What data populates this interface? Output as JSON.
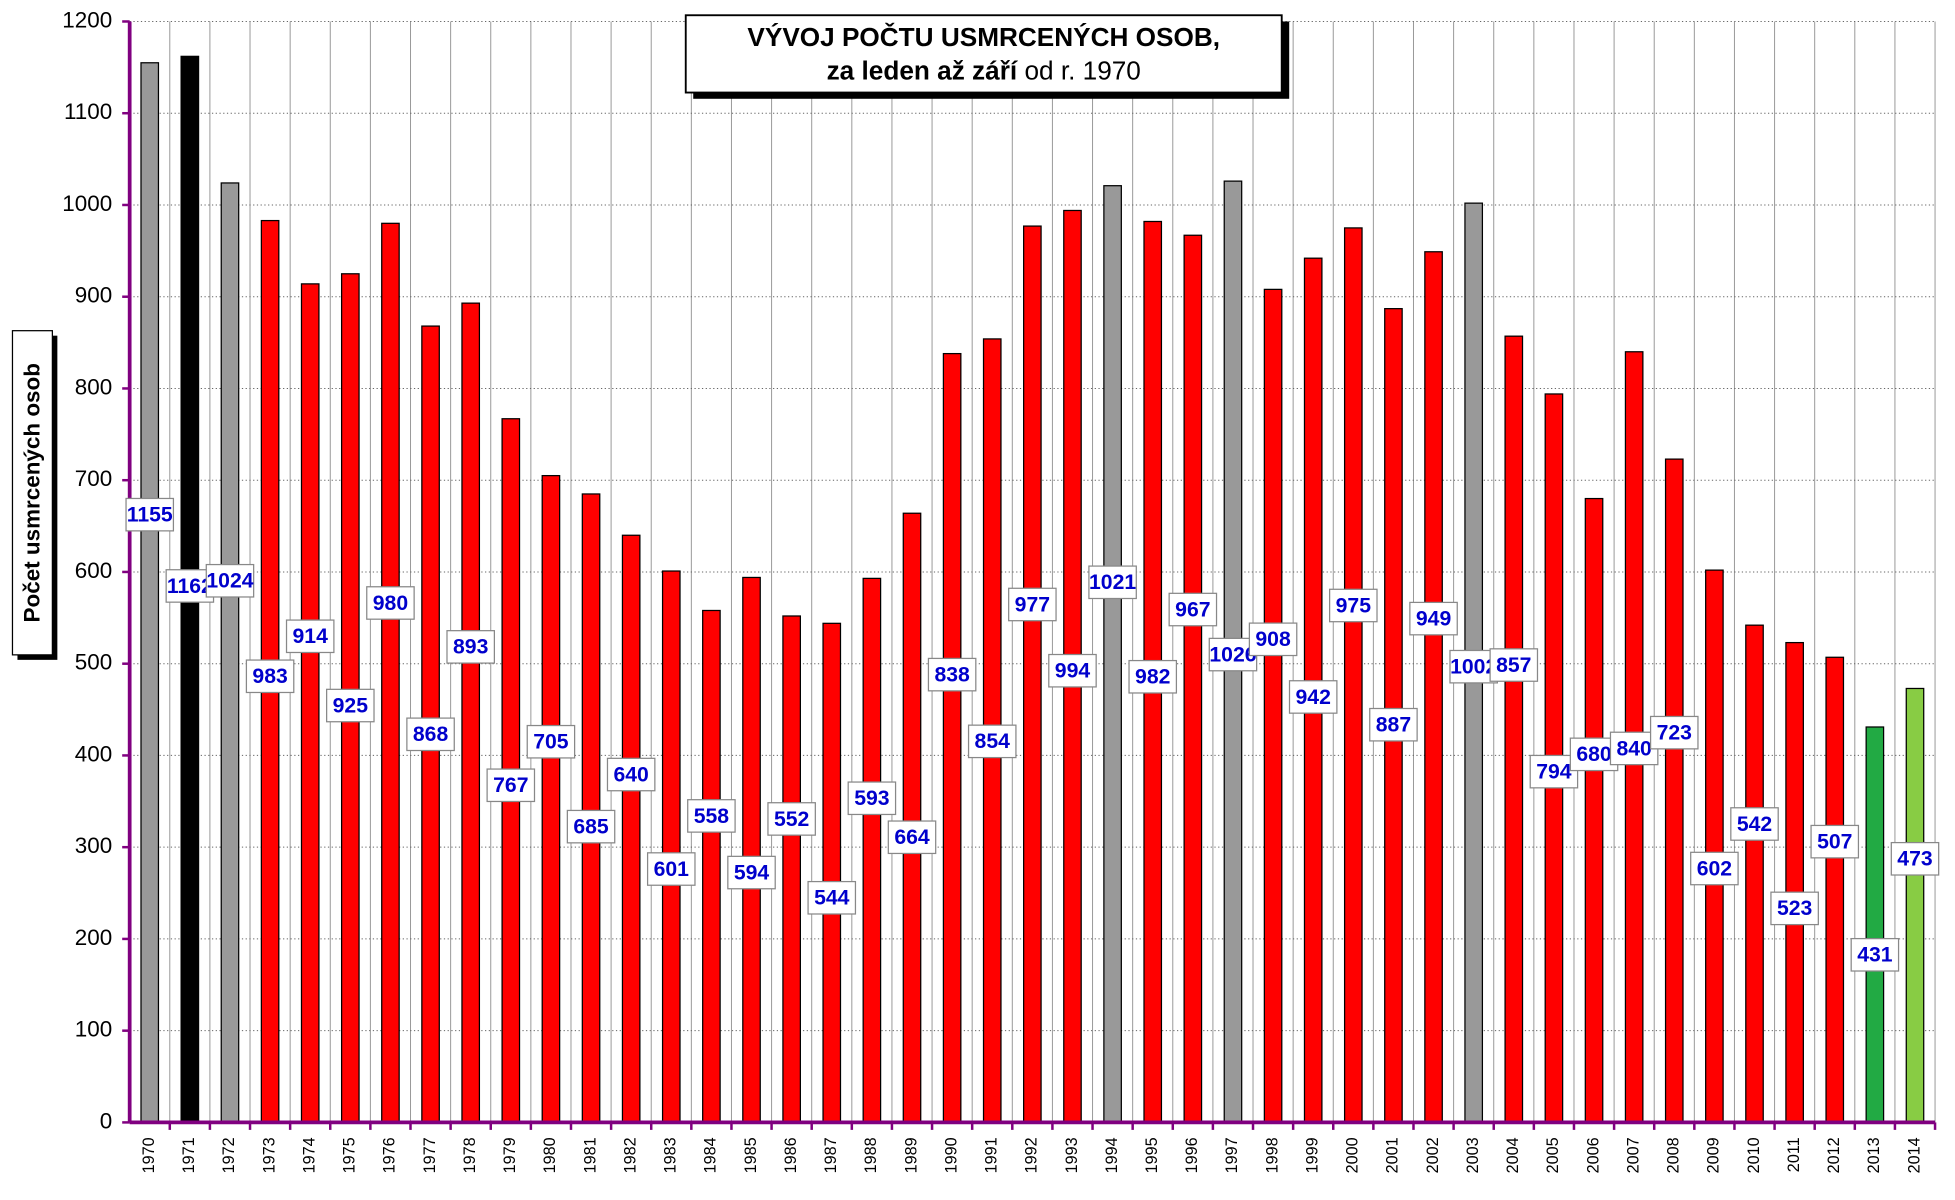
{
  "chart_data": {
    "type": "bar",
    "title": "VÝVOJ POČTU USMRCENÝCH OSOB,",
    "subtitle_bold": "za leden až září",
    "subtitle_normal": "od r. 1970",
    "y_label": "Počet usmrcených osob",
    "categories": [
      "1970",
      "1971",
      "1972",
      "1973",
      "1974",
      "1975",
      "1976",
      "1977",
      "1978",
      "1979",
      "1980",
      "1981",
      "1982",
      "1983",
      "1984",
      "1985",
      "1986",
      "1987",
      "1988",
      "1989",
      "1990",
      "1991",
      "1992",
      "1993",
      "1994",
      "1995",
      "1996",
      "1997",
      "1998",
      "1999",
      "2000",
      "2001",
      "2002",
      "2003",
      "2004",
      "2005",
      "2006",
      "2007",
      "2008",
      "2009",
      "2010",
      "2011",
      "2012",
      "2013",
      "2014"
    ],
    "values": [
      1155,
      1162,
      1024,
      983,
      914,
      925,
      980,
      868,
      893,
      767,
      705,
      685,
      640,
      601,
      558,
      594,
      552,
      544,
      593,
      664,
      838,
      854,
      977,
      994,
      1021,
      982,
      967,
      1026,
      908,
      942,
      975,
      887,
      949,
      1002,
      857,
      794,
      680,
      840,
      723,
      602,
      542,
      523,
      507,
      431,
      473
    ],
    "colors": [
      "#999999",
      "#000000",
      "#999999",
      "#ff0000",
      "#ff0000",
      "#ff0000",
      "#ff0000",
      "#ff0000",
      "#ff0000",
      "#ff0000",
      "#ff0000",
      "#ff0000",
      "#ff0000",
      "#ff0000",
      "#ff0000",
      "#ff0000",
      "#ff0000",
      "#ff0000",
      "#ff0000",
      "#ff0000",
      "#ff0000",
      "#ff0000",
      "#ff0000",
      "#ff0000",
      "#999999",
      "#ff0000",
      "#ff0000",
      "#999999",
      "#ff0000",
      "#ff0000",
      "#ff0000",
      "#ff0000",
      "#ff0000",
      "#999999",
      "#ff0000",
      "#ff0000",
      "#ff0000",
      "#ff0000",
      "#ff0000",
      "#ff0000",
      "#ff0000",
      "#ff0000",
      "#ff0000",
      "#22aa44",
      "#88cc44"
    ],
    "ylim": [
      0,
      1200
    ],
    "yticks": [
      0,
      100,
      200,
      300,
      400,
      500,
      600,
      700,
      800,
      900,
      1000,
      1100,
      1200
    ],
    "grid": true
  }
}
